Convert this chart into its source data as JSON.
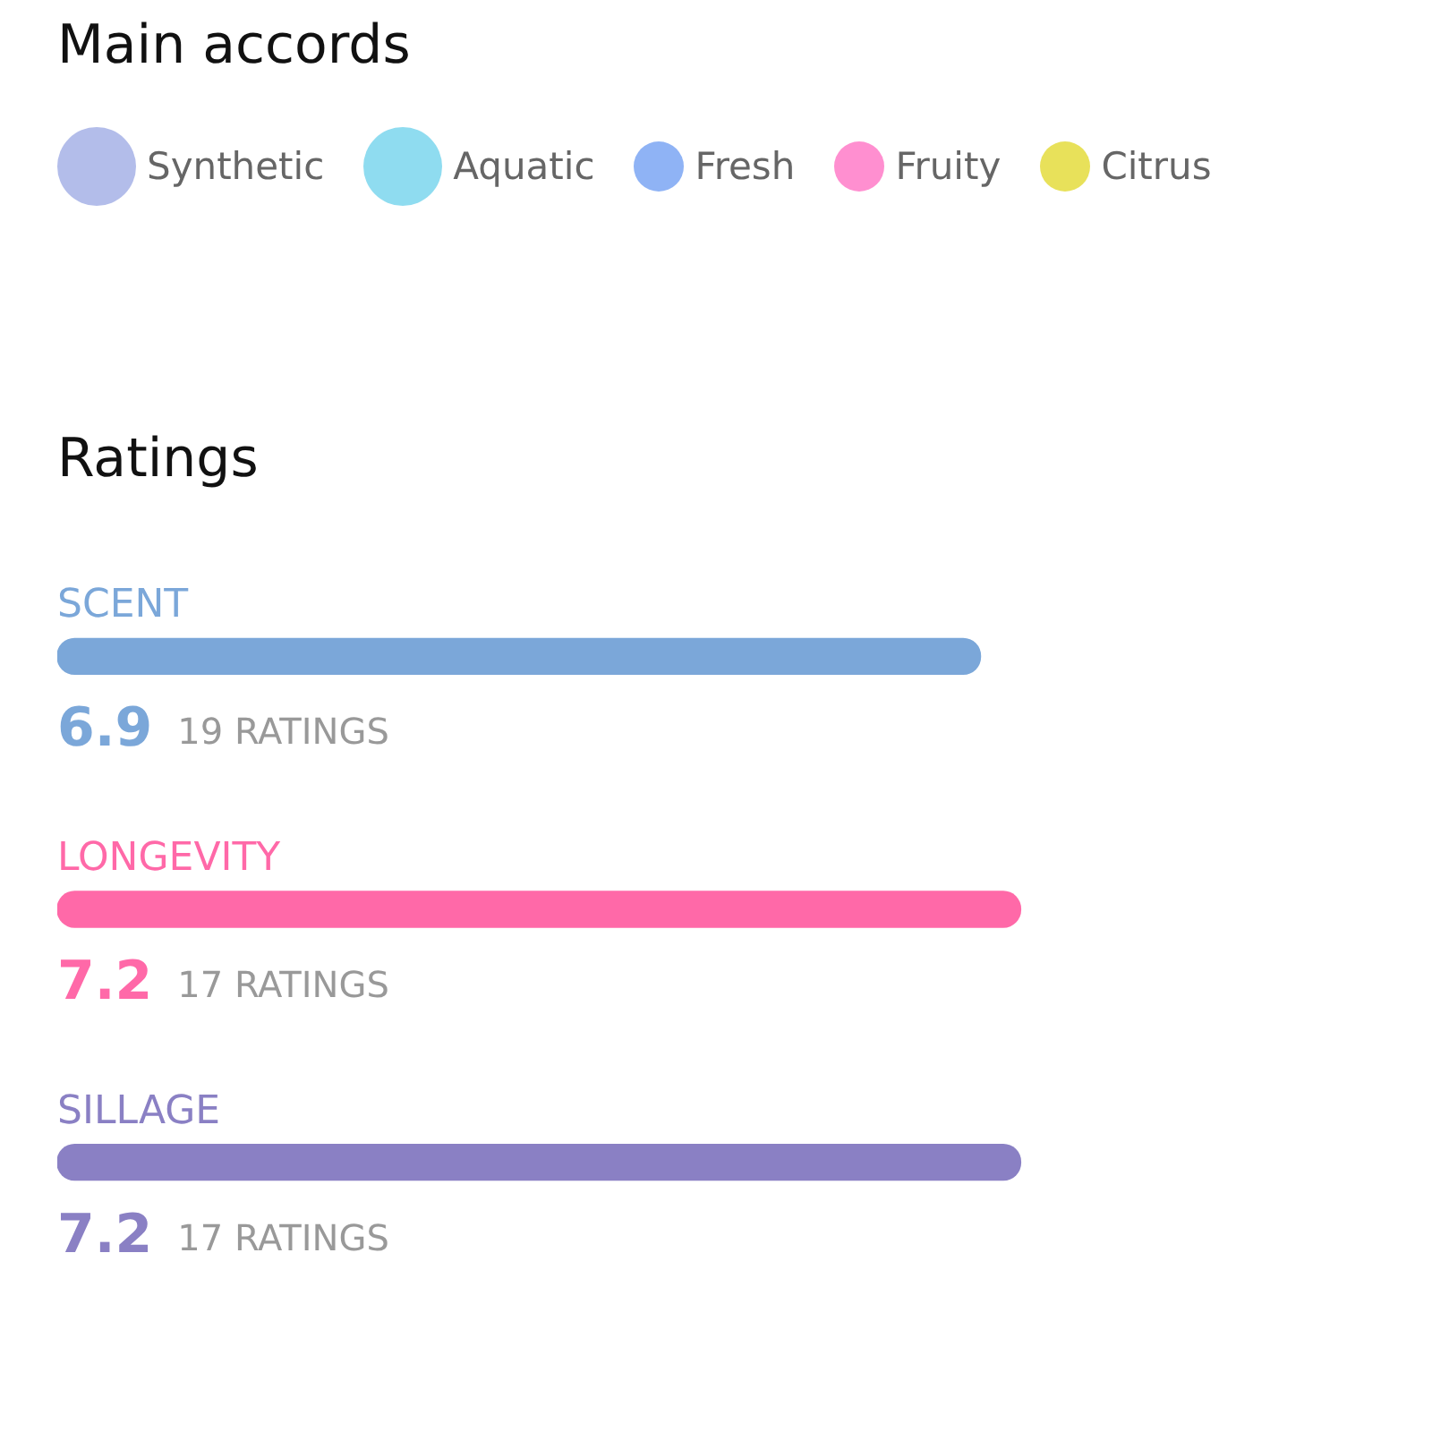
{
  "chart_data": [
    {
      "type": "other",
      "title": "Main accords",
      "annotations": [
        "Synthetic",
        "Aquatic",
        "Fresh",
        "Fruity",
        "Citrus"
      ]
    },
    {
      "type": "bar",
      "orientation": "horizontal",
      "title": "Ratings",
      "categories": [
        "SCENT",
        "LONGEVITY",
        "SILLAGE"
      ],
      "values": [
        6.9,
        7.2,
        7.2
      ],
      "colors": [
        "#7ba7d9",
        "#ff69a8",
        "#8a80c4"
      ],
      "data_labels": true,
      "annotations": [
        "19 RATINGS",
        "17 RATINGS",
        "17 RATINGS"
      ]
    }
  ]
}
